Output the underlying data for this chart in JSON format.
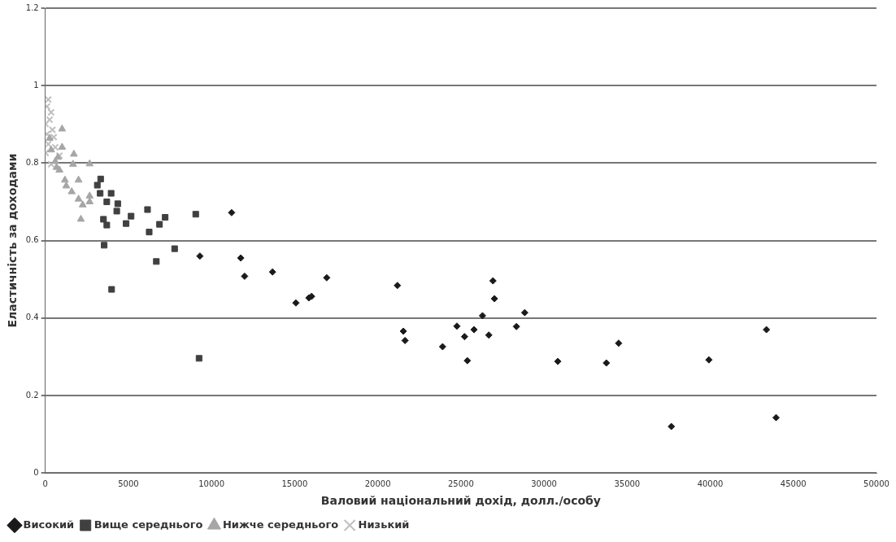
{
  "chart_data": {
    "type": "scatter",
    "xlabel": "Валовий національний дохід, долл./особу",
    "ylabel": "Еластичність за доходами",
    "xlim": [
      0,
      50000
    ],
    "xticks": [
      0,
      5000,
      10000,
      15000,
      20000,
      25000,
      30000,
      35000,
      40000,
      45000,
      50000
    ],
    "ylim": [
      0,
      1.2
    ],
    "yticks": [
      0,
      0.2,
      0.4,
      0.6,
      0.8,
      1,
      1.2
    ],
    "grid": "y",
    "legend": "bottom left",
    "series": [
      {
        "name": "Високий",
        "color": "#1a1a1a",
        "marker": "diamond",
        "x": [
          11210,
          9300,
          11760,
          11990,
          13670,
          15075,
          15855,
          16020,
          16930,
          21180,
          21540,
          21640,
          23900,
          24760,
          25220,
          25390,
          25790,
          26300,
          26680,
          26930,
          27020,
          28340,
          28840,
          30830,
          33750,
          34490,
          37660,
          39920,
          43380,
          43960
        ],
        "values": [
          0.672,
          0.56,
          0.555,
          0.508,
          0.519,
          0.439,
          0.452,
          0.456,
          0.504,
          0.484,
          0.366,
          0.342,
          0.326,
          0.379,
          0.352,
          0.29,
          0.37,
          0.406,
          0.356,
          0.496,
          0.45,
          0.378,
          0.414,
          0.288,
          0.284,
          0.335,
          0.12,
          0.292,
          0.37,
          0.143
        ]
      },
      {
        "name": "Вище середнього",
        "color": "#404040",
        "marker": "square",
        "x": [
          3330,
          3130,
          3300,
          3960,
          3700,
          4360,
          4300,
          3500,
          3700,
          4860,
          5160,
          6150,
          6250,
          6870,
          7210,
          9050,
          3540,
          7780,
          6680,
          3990,
          9250
        ],
        "values": [
          0.759,
          0.743,
          0.722,
          0.722,
          0.7,
          0.695,
          0.676,
          0.655,
          0.64,
          0.644,
          0.663,
          0.68,
          0.622,
          0.642,
          0.66,
          0.668,
          0.588,
          0.579,
          0.546,
          0.474,
          0.296
        ]
      },
      {
        "name": "Нижче середнього",
        "color": "#a6a6a6",
        "marker": "triangle",
        "x": [
          1010,
          1010,
          1720,
          1670,
          2670,
          760,
          680,
          850,
          1180,
          1260,
          2000,
          1590,
          2000,
          2670,
          2250,
          2670,
          2140,
          350,
          260,
          600
        ],
        "values": [
          0.888,
          0.841,
          0.823,
          0.797,
          0.798,
          0.815,
          0.789,
          0.782,
          0.756,
          0.741,
          0.756,
          0.726,
          0.707,
          0.715,
          0.692,
          0.7,
          0.655,
          0.834,
          0.864,
          0.804
        ]
      },
      {
        "name": "Низький",
        "color": "#bfbfbf",
        "marker": "cross",
        "x": [
          180,
          100,
          350,
          260,
          20,
          430,
          100,
          510,
          180,
          600,
          20,
          350,
          850
        ],
        "values": [
          0.964,
          0.946,
          0.931,
          0.912,
          0.901,
          0.886,
          0.875,
          0.867,
          0.849,
          0.841,
          0.826,
          0.797,
          0.819
        ]
      }
    ]
  }
}
